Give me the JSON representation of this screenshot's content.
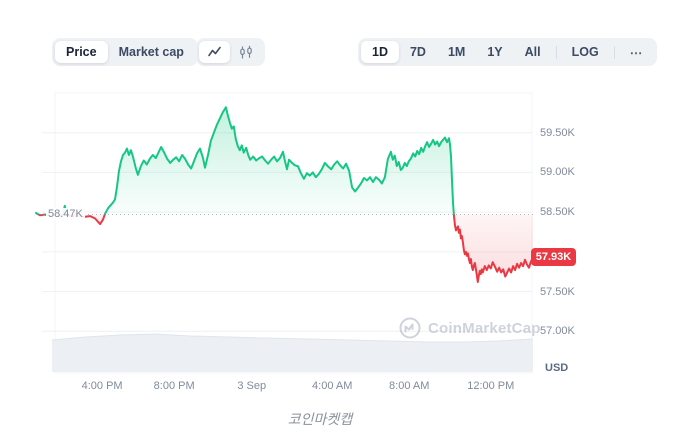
{
  "toolbar": {
    "metric_toggle": {
      "options": [
        "Price",
        "Market cap"
      ],
      "selected": "Price"
    },
    "chart_type_toggle": {
      "options": [
        "line-chart",
        "candlestick"
      ],
      "selected": "line-chart"
    },
    "range_toggle": {
      "options": [
        "1D",
        "7D",
        "1M",
        "1Y",
        "All"
      ],
      "selected": "1D",
      "log_label": "LOG",
      "more_label": "⋯"
    }
  },
  "chart": {
    "baseline_label": "58.47K",
    "last_price_label": "57.93K",
    "currency_label": "USD",
    "colors": {
      "up": "#16c784",
      "down": "#ea3943",
      "badge": "#ea3943",
      "grid": "#eef1f4",
      "axis_text": "#808a9d"
    }
  },
  "watermark": {
    "text": "CoinMarketCap"
  },
  "caption": "코인마켓캡",
  "chart_data": {
    "type": "line",
    "title": "BTC price, 1D range",
    "ylabel": "USD",
    "unit": "thousand USD",
    "ylim": [
      56.5,
      60.0
    ],
    "baseline": 58.47,
    "last": 57.93,
    "grid_values": [
      59.5,
      59.0,
      58.5,
      58.0,
      57.5,
      57.0
    ],
    "y_ticks": [
      {
        "value": 59.5,
        "label": "59.50K"
      },
      {
        "value": 59.0,
        "label": "59.00K"
      },
      {
        "value": 58.5,
        "label": "58.50K"
      },
      {
        "value": 57.5,
        "label": "57.50K"
      },
      {
        "value": 57.0,
        "label": "57.00K"
      }
    ],
    "x_ticks": [
      {
        "f": 0.133,
        "label": "4:00 PM"
      },
      {
        "f": 0.278,
        "label": "8:00 PM"
      },
      {
        "f": 0.434,
        "label": "3 Sep"
      },
      {
        "f": 0.596,
        "label": "4:00 AM"
      },
      {
        "f": 0.751,
        "label": "8:00 AM"
      },
      {
        "f": 0.915,
        "label": "12:00 PM"
      }
    ],
    "series": {
      "name": "Price",
      "points": [
        [
          0.0,
          58.49
        ],
        [
          0.008,
          58.46
        ],
        [
          0.018,
          58.47
        ],
        [
          0.028,
          58.45
        ],
        [
          0.038,
          58.48
        ],
        [
          0.048,
          58.45
        ],
        [
          0.054,
          58.47
        ],
        [
          0.058,
          58.58
        ],
        [
          0.062,
          58.46
        ],
        [
          0.072,
          58.45
        ],
        [
          0.085,
          58.46
        ],
        [
          0.097,
          58.44
        ],
        [
          0.109,
          58.45
        ],
        [
          0.119,
          58.42
        ],
        [
          0.129,
          58.35
        ],
        [
          0.135,
          58.41
        ],
        [
          0.139,
          58.48
        ],
        [
          0.145,
          58.55
        ],
        [
          0.149,
          58.58
        ],
        [
          0.155,
          58.62
        ],
        [
          0.159,
          58.66
        ],
        [
          0.163,
          58.82
        ],
        [
          0.167,
          59.02
        ],
        [
          0.171,
          59.14
        ],
        [
          0.175,
          59.22
        ],
        [
          0.179,
          59.25
        ],
        [
          0.183,
          59.3
        ],
        [
          0.187,
          59.22
        ],
        [
          0.191,
          59.28
        ],
        [
          0.195,
          59.2
        ],
        [
          0.201,
          59.05
        ],
        [
          0.205,
          58.97
        ],
        [
          0.211,
          59.08
        ],
        [
          0.217,
          59.15
        ],
        [
          0.223,
          59.1
        ],
        [
          0.229,
          59.17
        ],
        [
          0.235,
          59.22
        ],
        [
          0.241,
          59.18
        ],
        [
          0.247,
          59.26
        ],
        [
          0.252,
          59.32
        ],
        [
          0.258,
          59.25
        ],
        [
          0.264,
          59.17
        ],
        [
          0.27,
          59.12
        ],
        [
          0.276,
          59.16
        ],
        [
          0.282,
          59.19
        ],
        [
          0.288,
          59.14
        ],
        [
          0.294,
          59.22
        ],
        [
          0.3,
          59.17
        ],
        [
          0.306,
          59.1
        ],
        [
          0.312,
          59.05
        ],
        [
          0.318,
          59.14
        ],
        [
          0.324,
          59.24
        ],
        [
          0.33,
          59.3
        ],
        [
          0.336,
          59.18
        ],
        [
          0.34,
          59.06
        ],
        [
          0.346,
          59.22
        ],
        [
          0.352,
          59.4
        ],
        [
          0.358,
          59.5
        ],
        [
          0.364,
          59.6
        ],
        [
          0.37,
          59.68
        ],
        [
          0.376,
          59.76
        ],
        [
          0.382,
          59.82
        ],
        [
          0.386,
          59.72
        ],
        [
          0.39,
          59.63
        ],
        [
          0.394,
          59.55
        ],
        [
          0.398,
          59.58
        ],
        [
          0.402,
          59.42
        ],
        [
          0.406,
          59.33
        ],
        [
          0.41,
          59.28
        ],
        [
          0.414,
          59.34
        ],
        [
          0.418,
          59.25
        ],
        [
          0.423,
          59.31
        ],
        [
          0.427,
          59.22
        ],
        [
          0.431,
          59.16
        ],
        [
          0.437,
          59.2
        ],
        [
          0.443,
          59.15
        ],
        [
          0.449,
          59.18
        ],
        [
          0.455,
          59.2
        ],
        [
          0.461,
          59.15
        ],
        [
          0.467,
          59.11
        ],
        [
          0.473,
          59.16
        ],
        [
          0.479,
          59.2
        ],
        [
          0.485,
          59.14
        ],
        [
          0.491,
          59.18
        ],
        [
          0.497,
          59.26
        ],
        [
          0.501,
          59.14
        ],
        [
          0.505,
          59.04
        ],
        [
          0.509,
          59.16
        ],
        [
          0.515,
          59.12
        ],
        [
          0.521,
          59.09
        ],
        [
          0.527,
          59.08
        ],
        [
          0.533,
          58.99
        ],
        [
          0.539,
          58.92
        ],
        [
          0.545,
          58.99
        ],
        [
          0.551,
          58.96
        ],
        [
          0.557,
          59.0
        ],
        [
          0.563,
          58.94
        ],
        [
          0.569,
          58.98
        ],
        [
          0.575,
          59.04
        ],
        [
          0.581,
          59.12
        ],
        [
          0.587,
          59.08
        ],
        [
          0.594,
          59.04
        ],
        [
          0.6,
          59.1
        ],
        [
          0.606,
          59.14
        ],
        [
          0.612,
          59.09
        ],
        [
          0.618,
          59.05
        ],
        [
          0.624,
          59.11
        ],
        [
          0.63,
          59.02
        ],
        [
          0.636,
          58.81
        ],
        [
          0.642,
          58.76
        ],
        [
          0.648,
          58.81
        ],
        [
          0.654,
          58.86
        ],
        [
          0.66,
          58.93
        ],
        [
          0.666,
          58.9
        ],
        [
          0.672,
          58.94
        ],
        [
          0.678,
          58.88
        ],
        [
          0.684,
          58.94
        ],
        [
          0.69,
          58.91
        ],
        [
          0.696,
          58.86
        ],
        [
          0.702,
          58.94
        ],
        [
          0.708,
          59.17
        ],
        [
          0.714,
          59.26
        ],
        [
          0.718,
          59.16
        ],
        [
          0.722,
          59.21
        ],
        [
          0.726,
          59.08
        ],
        [
          0.73,
          59.13
        ],
        [
          0.734,
          59.03
        ],
        [
          0.738,
          59.06
        ],
        [
          0.742,
          59.12
        ],
        [
          0.746,
          59.08
        ],
        [
          0.75,
          59.14
        ],
        [
          0.754,
          59.17
        ],
        [
          0.759,
          59.24
        ],
        [
          0.763,
          59.2
        ],
        [
          0.767,
          59.27
        ],
        [
          0.771,
          59.23
        ],
        [
          0.775,
          59.31
        ],
        [
          0.779,
          59.26
        ],
        [
          0.783,
          59.33
        ],
        [
          0.787,
          59.38
        ],
        [
          0.791,
          59.32
        ],
        [
          0.795,
          59.36
        ],
        [
          0.799,
          59.41
        ],
        [
          0.803,
          59.35
        ],
        [
          0.807,
          59.39
        ],
        [
          0.811,
          59.33
        ],
        [
          0.815,
          59.38
        ],
        [
          0.819,
          59.41
        ],
        [
          0.823,
          59.44
        ],
        [
          0.827,
          59.38
        ],
        [
          0.831,
          59.43
        ],
        [
          0.833,
          59.35
        ],
        [
          0.835,
          59.2
        ],
        [
          0.837,
          58.9
        ],
        [
          0.839,
          58.62
        ],
        [
          0.841,
          58.45
        ],
        [
          0.843,
          58.33
        ],
        [
          0.845,
          58.27
        ],
        [
          0.847,
          58.3
        ],
        [
          0.849,
          58.32
        ],
        [
          0.851,
          58.24
        ],
        [
          0.853,
          58.28
        ],
        [
          0.855,
          58.17
        ],
        [
          0.857,
          58.2
        ],
        [
          0.859,
          58.12
        ],
        [
          0.861,
          58.02
        ],
        [
          0.863,
          57.97
        ],
        [
          0.865,
          58.0
        ],
        [
          0.867,
          57.95
        ],
        [
          0.869,
          57.98
        ],
        [
          0.871,
          57.91
        ],
        [
          0.873,
          57.86
        ],
        [
          0.875,
          57.91
        ],
        [
          0.877,
          57.81
        ],
        [
          0.879,
          57.77
        ],
        [
          0.881,
          57.83
        ],
        [
          0.883,
          57.86
        ],
        [
          0.885,
          57.79
        ],
        [
          0.887,
          57.71
        ],
        [
          0.889,
          57.62
        ],
        [
          0.891,
          57.7
        ],
        [
          0.893,
          57.76
        ],
        [
          0.895,
          57.72
        ],
        [
          0.897,
          57.78
        ],
        [
          0.899,
          57.74
        ],
        [
          0.903,
          57.82
        ],
        [
          0.907,
          57.77
        ],
        [
          0.911,
          57.83
        ],
        [
          0.915,
          57.79
        ],
        [
          0.919,
          57.87
        ],
        [
          0.923,
          57.82
        ],
        [
          0.928,
          57.75
        ],
        [
          0.932,
          57.8
        ],
        [
          0.936,
          57.74
        ],
        [
          0.94,
          57.78
        ],
        [
          0.944,
          57.69
        ],
        [
          0.948,
          57.74
        ],
        [
          0.952,
          57.79
        ],
        [
          0.956,
          57.74
        ],
        [
          0.96,
          57.82
        ],
        [
          0.964,
          57.77
        ],
        [
          0.968,
          57.85
        ],
        [
          0.972,
          57.8
        ],
        [
          0.976,
          57.86
        ],
        [
          0.98,
          57.82
        ],
        [
          0.984,
          57.9
        ],
        [
          0.988,
          57.84
        ],
        [
          0.992,
          57.8
        ],
        [
          0.996,
          57.88
        ],
        [
          1.0,
          57.93
        ]
      ]
    },
    "navigator_profile": {
      "top": [
        [
          0.032,
          340
        ],
        [
          0.1,
          337
        ],
        [
          0.17,
          335
        ],
        [
          0.24,
          334
        ],
        [
          0.31,
          336
        ],
        [
          0.39,
          337
        ],
        [
          0.46,
          338
        ],
        [
          0.55,
          339
        ],
        [
          0.63,
          340
        ],
        [
          0.71,
          341
        ],
        [
          0.79,
          342
        ],
        [
          0.86,
          342
        ],
        [
          0.93,
          341
        ],
        [
          1.0,
          339
        ]
      ],
      "bottom": 372
    }
  }
}
